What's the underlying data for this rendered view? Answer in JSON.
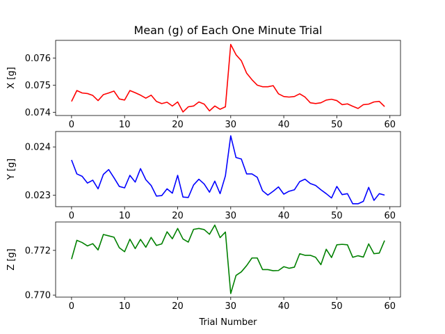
{
  "chart_data": {
    "type": "line",
    "title": "Mean (g) of Each One Minute Trial",
    "xlabel": "Trial Number",
    "grid": false,
    "x": [
      0,
      1,
      2,
      3,
      4,
      5,
      6,
      7,
      8,
      9,
      10,
      11,
      12,
      13,
      14,
      15,
      16,
      17,
      18,
      19,
      20,
      21,
      22,
      23,
      24,
      25,
      26,
      27,
      28,
      29,
      30,
      31,
      32,
      33,
      34,
      35,
      36,
      37,
      38,
      39,
      40,
      41,
      42,
      43,
      44,
      45,
      46,
      47,
      48,
      49,
      50,
      51,
      52,
      53,
      54,
      55,
      56,
      57,
      58,
      59
    ],
    "xlim": [
      -3,
      62
    ],
    "xticks": [
      0,
      10,
      20,
      30,
      40,
      50,
      60
    ],
    "subplots": [
      {
        "ylabel": "X [g]",
        "color": "#ff0000",
        "ylim": [
          0.07388,
          0.07665
        ],
        "yticks": [
          0.074,
          0.075,
          0.076
        ],
        "ytick_labels": [
          "0.074",
          "0.075",
          "0.076"
        ],
        "values": [
          0.0744,
          0.0748,
          0.07471,
          0.07469,
          0.07462,
          0.07443,
          0.07465,
          0.07471,
          0.07478,
          0.07449,
          0.07445,
          0.0748,
          0.07472,
          0.07463,
          0.07452,
          0.07463,
          0.0744,
          0.07432,
          0.07437,
          0.07423,
          0.07438,
          0.07401,
          0.0742,
          0.07423,
          0.07438,
          0.0743,
          0.07405,
          0.07423,
          0.07411,
          0.0742,
          0.0765,
          0.07612,
          0.0759,
          0.07544,
          0.0752,
          0.075,
          0.07494,
          0.07494,
          0.07498,
          0.07468,
          0.07458,
          0.07456,
          0.07458,
          0.07468,
          0.07456,
          0.07435,
          0.07432,
          0.07435,
          0.07445,
          0.07448,
          0.07443,
          0.07428,
          0.07431,
          0.07422,
          0.07414,
          0.07428,
          0.0743,
          0.07438,
          0.0744,
          0.07421
        ]
      },
      {
        "ylabel": "Y [g]",
        "color": "#0000ff",
        "ylim": [
          0.02276,
          0.02432
        ],
        "yticks": [
          0.023,
          0.024
        ],
        "ytick_labels": [
          "0.023",
          "0.024"
        ],
        "values": [
          0.02373,
          0.02344,
          0.02339,
          0.02325,
          0.02331,
          0.02313,
          0.02343,
          0.02353,
          0.02336,
          0.02318,
          0.02315,
          0.02341,
          0.02327,
          0.02355,
          0.02332,
          0.0232,
          0.02298,
          0.02299,
          0.02313,
          0.02304,
          0.02341,
          0.02296,
          0.02295,
          0.02321,
          0.02333,
          0.02323,
          0.02306,
          0.02329,
          0.02303,
          0.0234,
          0.02423,
          0.02378,
          0.02375,
          0.02344,
          0.02344,
          0.02337,
          0.02309,
          0.023,
          0.02308,
          0.02317,
          0.02302,
          0.02308,
          0.02311,
          0.02328,
          0.02333,
          0.02324,
          0.0232,
          0.02311,
          0.02303,
          0.02294,
          0.02318,
          0.02301,
          0.02303,
          0.02282,
          0.02282,
          0.02287,
          0.02316,
          0.02289,
          0.02303,
          0.023
        ]
      },
      {
        "ylabel": "Z [g]",
        "color": "#008000",
        "ylim": [
          0.76991,
          0.77327
        ],
        "yticks": [
          0.77,
          0.772
        ],
        "ytick_labels": [
          "0.770",
          "0.772"
        ],
        "values": [
          0.77161,
          0.77245,
          0.77235,
          0.7722,
          0.7723,
          0.77202,
          0.77271,
          0.77265,
          0.77259,
          0.77212,
          0.77194,
          0.7725,
          0.77208,
          0.77249,
          0.77214,
          0.77258,
          0.77222,
          0.77229,
          0.77283,
          0.77252,
          0.77298,
          0.77251,
          0.77237,
          0.77294,
          0.77298,
          0.77293,
          0.77272,
          0.77313,
          0.77257,
          0.77282,
          0.77007,
          0.77088,
          0.77104,
          0.77132,
          0.77166,
          0.77166,
          0.77114,
          0.77114,
          0.77109,
          0.7711,
          0.77127,
          0.7712,
          0.77125,
          0.77185,
          0.77178,
          0.77178,
          0.77169,
          0.77136,
          0.77205,
          0.77168,
          0.77225,
          0.77227,
          0.77225,
          0.77169,
          0.77176,
          0.7717,
          0.77229,
          0.77185,
          0.77188,
          0.77244
        ]
      }
    ]
  }
}
